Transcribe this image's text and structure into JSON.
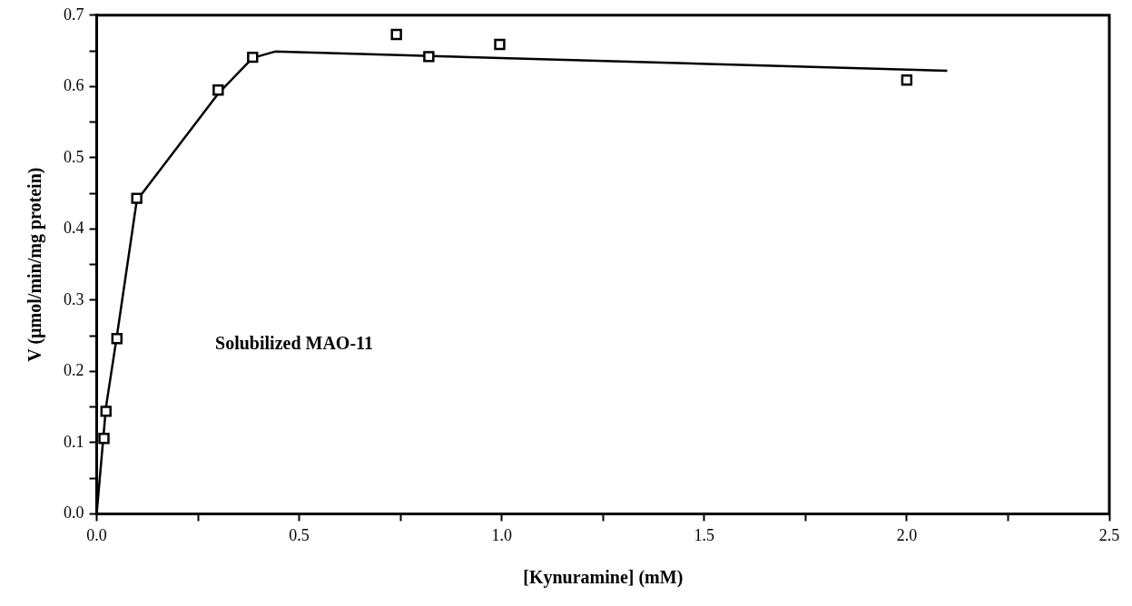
{
  "chart_data": {
    "type": "scatter",
    "xlabel": "[Kynuramine] (mM)",
    "ylabel": "V (µmol/min/mg protein)",
    "annotations": [
      "Solubilized MAO-11"
    ],
    "series": [
      {
        "color": "#000000",
        "marker": "square",
        "x": [
          0.018,
          0.023,
          0.05,
          0.099,
          0.3,
          0.385,
          0.74,
          0.82,
          0.995,
          2.0
        ],
        "values": [
          0.106,
          0.144,
          0.246,
          0.443,
          0.595,
          0.641,
          0.673,
          0.642,
          0.659,
          0.609
        ]
      },
      {
        "type": "line",
        "color": "#000000",
        "marker": "none",
        "line_style": "solid",
        "x": [
          0,
          0.023,
          0.05,
          0.099,
          0.3,
          0.385,
          0.44,
          2.1
        ],
        "values": [
          0,
          0.15,
          0.25,
          0.44,
          0.59,
          0.64,
          0.649,
          0.622
        ]
      }
    ],
    "xlim": [
      0,
      2.5
    ],
    "xticks": [
      {
        "value": 0,
        "label": "0.0"
      },
      {
        "value": 0.25,
        "label": null
      },
      0.5,
      {
        "value": 0.75,
        "label": null
      },
      {
        "value": 1,
        "label": "1.0"
      },
      {
        "value": 1.25,
        "label": null
      },
      1.5,
      {
        "value": 1.75,
        "label": null
      },
      {
        "value": 2,
        "label": "2.0"
      },
      {
        "value": 2.25,
        "label": null
      },
      2.5
    ],
    "ylim": [
      0,
      0.7
    ],
    "yticks": [
      {
        "value": 0,
        "label": "0.0"
      },
      {
        "value": 0.05,
        "label": null
      },
      0.1,
      {
        "value": 0.15,
        "label": null
      },
      0.2,
      {
        "value": 0.25,
        "label": null
      },
      0.3,
      {
        "value": 0.35,
        "label": null
      },
      0.4,
      {
        "value": 0.45,
        "label": null
      },
      0.5,
      {
        "value": 0.55,
        "label": null
      },
      0.6,
      {
        "value": 0.65,
        "label": null
      },
      0.7
    ],
    "grid": false,
    "legend": false
  }
}
